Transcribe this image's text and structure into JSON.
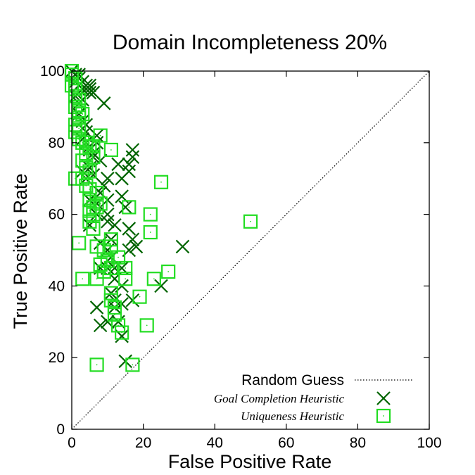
{
  "chart_data": {
    "type": "scatter",
    "title": "Domain Incompleteness 20%",
    "xlabel": "False Positive Rate",
    "ylabel": "True Positive Rate",
    "xlim": [
      0,
      100
    ],
    "ylim": [
      0,
      100
    ],
    "x_ticks": [
      "0",
      "20",
      "40",
      "60",
      "80",
      "100"
    ],
    "y_ticks": [
      "0",
      "20",
      "40",
      "60",
      "80",
      "100"
    ],
    "grid": false,
    "legend_position": "bottom-right",
    "reference_line": {
      "name": "Random Guess",
      "style": "dotted",
      "from": [
        0,
        0
      ],
      "to": [
        100,
        100
      ]
    },
    "colors": {
      "goal_completion": "#006400",
      "uniqueness": "#22dd22",
      "reference": "#000000"
    },
    "series": [
      {
        "name": "Goal Completion Heuristic",
        "marker": "x",
        "points": [
          [
            0,
            100
          ],
          [
            1,
            99
          ],
          [
            2,
            98
          ],
          [
            2,
            96
          ],
          [
            3,
            97
          ],
          [
            3,
            95
          ],
          [
            4,
            96
          ],
          [
            4,
            95
          ],
          [
            5,
            94
          ],
          [
            5,
            95
          ],
          [
            6,
            94
          ],
          [
            5,
            96
          ],
          [
            1,
            97
          ],
          [
            2,
            99
          ],
          [
            1,
            93
          ],
          [
            2,
            91
          ],
          [
            3,
            92
          ],
          [
            9,
            91
          ],
          [
            2,
            88
          ],
          [
            3,
            86
          ],
          [
            4,
            85
          ],
          [
            4,
            83
          ],
          [
            3,
            81
          ],
          [
            4,
            80
          ],
          [
            5,
            78
          ],
          [
            5,
            79
          ],
          [
            6,
            77
          ],
          [
            7,
            82
          ],
          [
            7,
            80
          ],
          [
            6,
            76
          ],
          [
            8,
            75
          ],
          [
            5,
            73
          ],
          [
            3,
            72
          ],
          [
            6,
            71
          ],
          [
            4,
            70
          ],
          [
            9,
            68
          ],
          [
            10,
            70
          ],
          [
            8,
            66
          ],
          [
            10,
            64
          ],
          [
            7,
            63
          ],
          [
            5,
            64
          ],
          [
            7,
            60
          ],
          [
            10,
            58
          ],
          [
            5,
            57
          ],
          [
            17,
            78
          ],
          [
            17,
            76
          ],
          [
            16,
            74
          ],
          [
            16,
            72
          ],
          [
            14,
            70
          ],
          [
            13,
            74
          ],
          [
            14,
            65
          ],
          [
            15,
            62
          ],
          [
            10,
            60
          ],
          [
            12,
            57
          ],
          [
            16,
            56
          ],
          [
            17,
            53
          ],
          [
            18,
            51
          ],
          [
            16,
            50
          ],
          [
            11,
            53
          ],
          [
            8,
            52
          ],
          [
            10,
            50
          ],
          [
            11,
            48
          ],
          [
            8,
            45
          ],
          [
            10,
            45
          ],
          [
            12,
            45
          ],
          [
            14,
            45
          ],
          [
            12,
            42
          ],
          [
            14,
            40
          ],
          [
            11,
            38
          ],
          [
            12,
            36
          ],
          [
            14,
            35
          ],
          [
            12,
            34
          ],
          [
            7,
            34
          ],
          [
            8,
            29
          ],
          [
            10,
            30
          ],
          [
            13,
            30
          ],
          [
            14,
            26
          ],
          [
            15,
            19
          ],
          [
            17,
            36
          ],
          [
            25,
            40
          ],
          [
            31,
            51
          ]
        ]
      },
      {
        "name": "Uniqueness Heuristic",
        "marker": "square",
        "points": [
          [
            0,
            100
          ],
          [
            0,
            99
          ],
          [
            1,
            98
          ],
          [
            0,
            96
          ],
          [
            1,
            95
          ],
          [
            1,
            93
          ],
          [
            2,
            92
          ],
          [
            1,
            90
          ],
          [
            2,
            89
          ],
          [
            3,
            88
          ],
          [
            2,
            87
          ],
          [
            1,
            85
          ],
          [
            2,
            84
          ],
          [
            1,
            83
          ],
          [
            2,
            81
          ],
          [
            3,
            80
          ],
          [
            4,
            80
          ],
          [
            5,
            79
          ],
          [
            6,
            79
          ],
          [
            4,
            77
          ],
          [
            6,
            76
          ],
          [
            8,
            82
          ],
          [
            11,
            78
          ],
          [
            3,
            75
          ],
          [
            4,
            73
          ],
          [
            5,
            72
          ],
          [
            3,
            70
          ],
          [
            4,
            68
          ],
          [
            5,
            67
          ],
          [
            7,
            66
          ],
          [
            5,
            64
          ],
          [
            6,
            62
          ],
          [
            5,
            61
          ],
          [
            6,
            60
          ],
          [
            7,
            62
          ],
          [
            5,
            58
          ],
          [
            6,
            56
          ],
          [
            8,
            63
          ],
          [
            1,
            70
          ],
          [
            25,
            69
          ],
          [
            16,
            62
          ],
          [
            22,
            60
          ],
          [
            22,
            55
          ],
          [
            50,
            58
          ],
          [
            2,
            52
          ],
          [
            7,
            51
          ],
          [
            9,
            50
          ],
          [
            11,
            51
          ],
          [
            11,
            53
          ],
          [
            13,
            48
          ],
          [
            10,
            47
          ],
          [
            8,
            46
          ],
          [
            9,
            44
          ],
          [
            11,
            45
          ],
          [
            15,
            45
          ],
          [
            15,
            42
          ],
          [
            7,
            42
          ],
          [
            3,
            42
          ],
          [
            23,
            42
          ],
          [
            27,
            44
          ],
          [
            11,
            38
          ],
          [
            11,
            36
          ],
          [
            12,
            34
          ],
          [
            12,
            32
          ],
          [
            13,
            29
          ],
          [
            14,
            27
          ],
          [
            19,
            37
          ],
          [
            21,
            29
          ],
          [
            7,
            18
          ],
          [
            17,
            18
          ]
        ]
      }
    ]
  }
}
